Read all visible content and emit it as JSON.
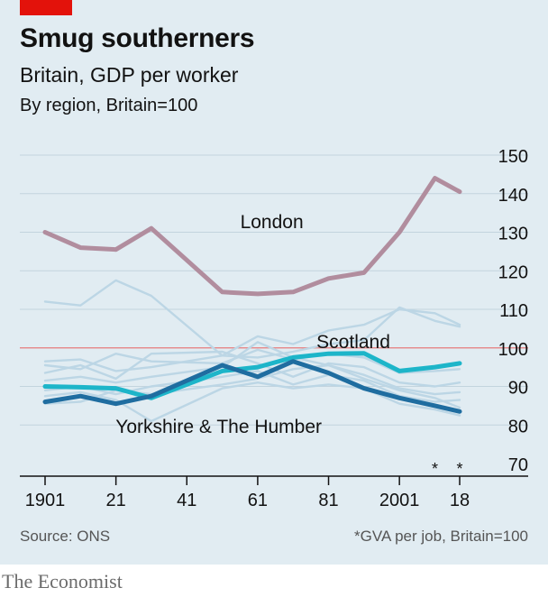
{
  "header": {
    "title": "Smug southerners",
    "subtitle": "Britain, GDP per worker",
    "subtitle2": "By region, Britain=100"
  },
  "footer": {
    "source": "Source: ONS",
    "footnote": "*GVA per job, Britain=100",
    "brand": "The Economist"
  },
  "colors": {
    "brand_red": "#e3120b",
    "london": "#b18d9e",
    "scotland": "#1db5c9",
    "yorkshire": "#1f6da0",
    "other_regions": "#bcd6e5",
    "reference_line": "#e87e7e"
  },
  "chart_data": {
    "type": "line",
    "ylim": [
      70,
      150
    ],
    "yticks": [
      70,
      80,
      90,
      100,
      110,
      120,
      130,
      140,
      150
    ],
    "xlim": [
      1901,
      2018
    ],
    "xticks": [
      {
        "value": 1901,
        "label": "1901"
      },
      {
        "value": 1921,
        "label": "21"
      },
      {
        "value": 1941,
        "label": "41"
      },
      {
        "value": 1961,
        "label": "61"
      },
      {
        "value": 1981,
        "label": "81"
      },
      {
        "value": 2001,
        "label": "2001"
      },
      {
        "value": 2018,
        "label": "18"
      }
    ],
    "starred_ticks": [
      {
        "value": 2011,
        "label": "*"
      },
      {
        "value": 2018,
        "label": "*"
      }
    ],
    "reference_line": 100,
    "highlighted_series": [
      {
        "name": "London",
        "key": "london",
        "label_pos": {
          "x": 1965,
          "y": 131
        },
        "x": [
          1901,
          1911,
          1921,
          1931,
          1951,
          1961,
          1971,
          1981,
          1991,
          2001,
          2011,
          2018
        ],
        "values": [
          130,
          126,
          125.5,
          131,
          114.5,
          114,
          114.5,
          118,
          119.5,
          130,
          144,
          140.5
        ]
      },
      {
        "name": "Scotland",
        "key": "scotland",
        "label_pos": {
          "x": 1988,
          "y": 100
        },
        "x": [
          1901,
          1911,
          1921,
          1931,
          1951,
          1961,
          1971,
          1981,
          1991,
          2001,
          2011,
          2018
        ],
        "values": [
          90,
          89.8,
          89.5,
          87,
          94,
          95,
          97.5,
          98.5,
          98.6,
          94,
          95,
          96
        ]
      },
      {
        "name": "Yorkshire & The Humber",
        "key": "yorkshire",
        "label_pos": {
          "x": 1950,
          "y": 78
        },
        "x": [
          1901,
          1911,
          1921,
          1931,
          1951,
          1961,
          1971,
          1981,
          1991,
          2001,
          2011,
          2018
        ],
        "values": [
          86,
          87.5,
          85.5,
          87.5,
          95.5,
          92.5,
          96.5,
          93.5,
          89.5,
          87,
          85,
          83.5
        ]
      }
    ],
    "other_series": [
      {
        "x": [
          1901,
          1911,
          1921,
          1931,
          1951,
          1961,
          1971,
          1981,
          1991,
          2001,
          2011,
          2018
        ],
        "values": [
          112,
          111,
          117.5,
          113.5,
          98,
          97.5,
          99,
          101,
          102,
          110.5,
          107,
          105.5
        ]
      },
      {
        "x": [
          1901,
          1911,
          1921,
          1931,
          1951,
          1961,
          1971,
          1981,
          1991,
          2001,
          2011,
          2018
        ],
        "values": [
          96.5,
          97,
          94,
          95,
          98,
          103,
          101,
          104.5,
          106,
          110,
          109,
          106
        ]
      },
      {
        "x": [
          1901,
          1911,
          1921,
          1931,
          1951,
          1961,
          1971,
          1981,
          1991,
          2001,
          2011,
          2018
        ],
        "values": [
          95.5,
          94.5,
          98.5,
          96.5,
          96,
          99.5,
          97,
          98.5,
          97.5,
          93.5,
          94,
          94.5
        ]
      },
      {
        "x": [
          1901,
          1911,
          1921,
          1931,
          1951,
          1961,
          1971,
          1981,
          1991,
          2001,
          2011,
          2018
        ],
        "values": [
          93.5,
          95.5,
          92,
          98.5,
          99,
          96,
          92.5,
          96,
          95,
          91,
          90,
          91
        ]
      },
      {
        "x": [
          1901,
          1911,
          1921,
          1931,
          1951,
          1961,
          1971,
          1981,
          1991,
          2001,
          2011,
          2018
        ],
        "values": [
          91.5,
          92.5,
          91,
          92.5,
          95,
          101.5,
          97.5,
          95.5,
          93,
          89.5,
          88,
          88.5
        ]
      },
      {
        "x": [
          1901,
          1911,
          1921,
          1931,
          1951,
          1961,
          1971,
          1981,
          1991,
          2001,
          2011,
          2018
        ],
        "values": [
          89,
          90,
          88,
          90,
          92.5,
          94,
          90.5,
          93,
          91.5,
          87.5,
          86,
          86.5
        ]
      },
      {
        "x": [
          1901,
          1911,
          1921,
          1931,
          1951,
          1961,
          1971,
          1981,
          1991,
          2001,
          2011,
          2018
        ],
        "values": [
          87.5,
          88.5,
          86.5,
          81,
          89.5,
          91,
          89.5,
          90.5,
          89.5,
          85.5,
          84,
          82.5
        ]
      },
      {
        "x": [
          1901,
          1911,
          1921,
          1931,
          1951,
          1961,
          1971,
          1981,
          1991,
          2001,
          2011,
          2018
        ],
        "values": [
          85.5,
          86,
          89,
          88,
          90.5,
          92,
          94.5,
          95.5,
          92,
          89,
          87,
          84.5
        ]
      }
    ]
  }
}
